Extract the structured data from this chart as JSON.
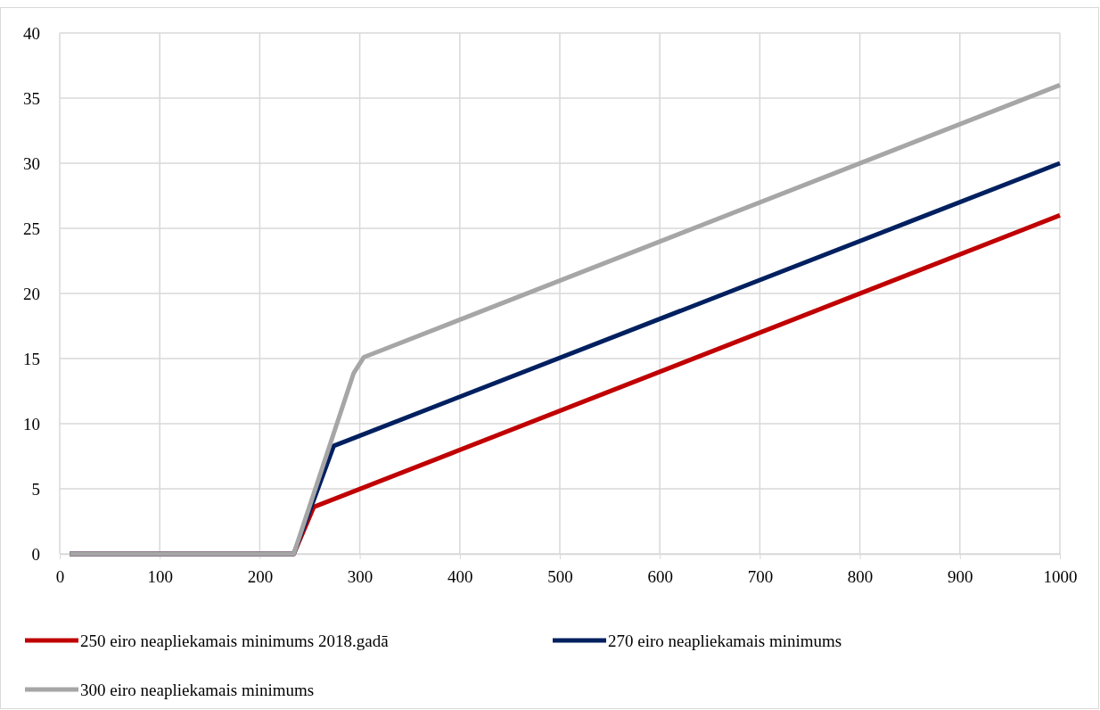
{
  "chart_data": {
    "type": "line",
    "xlim": [
      0,
      1000
    ],
    "xticks": [
      0,
      100,
      200,
      300,
      400,
      500,
      600,
      700,
      800,
      900,
      1000
    ],
    "ylim": [
      0,
      40
    ],
    "yticks": [
      0,
      5,
      10,
      15,
      20,
      25,
      30,
      35,
      40
    ],
    "grid": true,
    "legend": "bottom",
    "marker": "none",
    "line_style": "solid",
    "series": [
      {
        "name": "250 eiro neapliekamais minimums 2018.gadā",
        "color": "#c00000",
        "x": [
          10,
          234,
          254,
          1000
        ],
        "values": [
          0,
          0,
          3.6,
          26
        ]
      },
      {
        "name": "270 eiro neapliekamais minimums",
        "color": "#002060",
        "x": [
          10,
          234,
          274,
          1000
        ],
        "values": [
          0,
          0,
          8.3,
          30
        ]
      },
      {
        "name": "300 eiro neapliekamais minimums",
        "color": "#a6a6a6",
        "x": [
          10,
          234,
          294,
          304,
          1000
        ],
        "values": [
          0,
          0,
          13.9,
          15.1,
          36
        ]
      }
    ]
  }
}
